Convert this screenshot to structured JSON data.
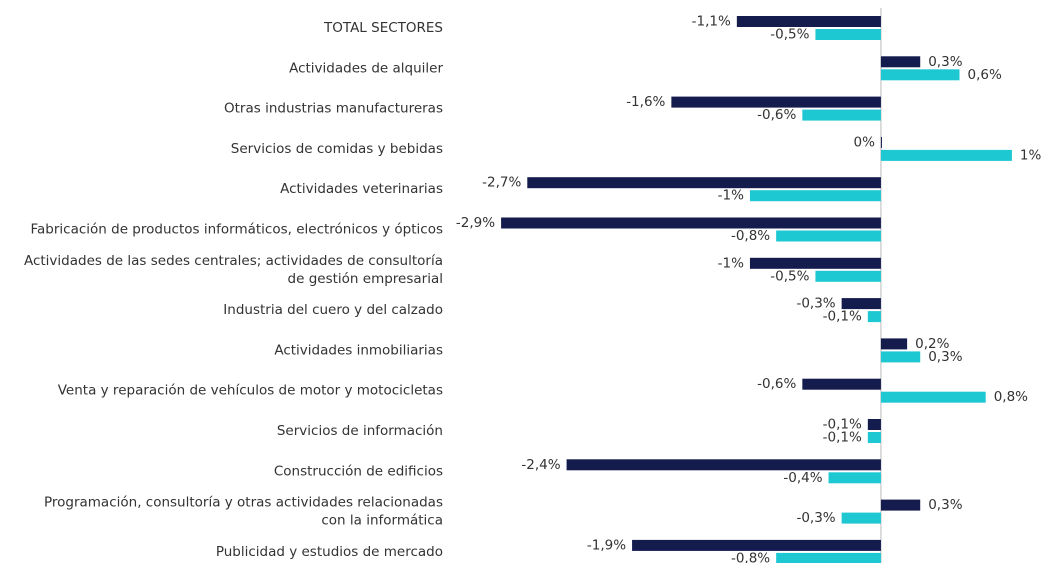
{
  "chart_data": {
    "type": "bar",
    "orientation": "horizontal",
    "categories": [
      "TOTAL SECTORES",
      "Actividades de alquiler",
      "Otras industrias manufactureras",
      "Servicios de comidas y bebidas",
      "Actividades veterinarias",
      "Fabricación de productos informáticos, electrónicos y ópticos",
      "Actividades de las sedes centrales; actividades de consultoría\nde gestión empresarial",
      "Industria del cuero y del calzado",
      "Actividades inmobiliarias",
      "Venta y reparación de vehículos de motor y motocicletas",
      "Servicios de información",
      "Construcción de edificios",
      "Programación, consultoría y otras actividades relacionadas\ncon la informática",
      "Publicidad y estudios de mercado"
    ],
    "series": [
      {
        "color": "#141b4d",
        "values": [
          -1.1,
          0.3,
          -1.6,
          0,
          -2.7,
          -2.9,
          -1,
          -0.3,
          0.2,
          -0.6,
          -0.1,
          -2.4,
          0.3,
          -1.9
        ],
        "value_labels": [
          "-1,1%",
          "0,3%",
          "-1,6%",
          "0%",
          "-2,7%",
          "-2,9%",
          "-1%",
          "-0,3%",
          "0,2%",
          "-0,6%",
          "-0,1%",
          "-2,4%",
          "0,3%",
          "-1,9%"
        ]
      },
      {
        "color": "#1ec8d2",
        "values": [
          -0.5,
          0.6,
          -0.6,
          1,
          -1,
          -0.8,
          -0.5,
          -0.1,
          0.3,
          0.8,
          -0.1,
          -0.4,
          -0.3,
          -0.8
        ],
        "value_labels": [
          "-0,5%",
          "0,6%",
          "-0,6%",
          "1%",
          "-1%",
          "-0,8%",
          "-0,5%",
          "-0,1%",
          "0,3%",
          "0,8%",
          "-0,1%",
          "-0,4%",
          "-0,3%",
          "-0,8%"
        ]
      }
    ],
    "xlim": [
      -3,
      1.1
    ]
  }
}
